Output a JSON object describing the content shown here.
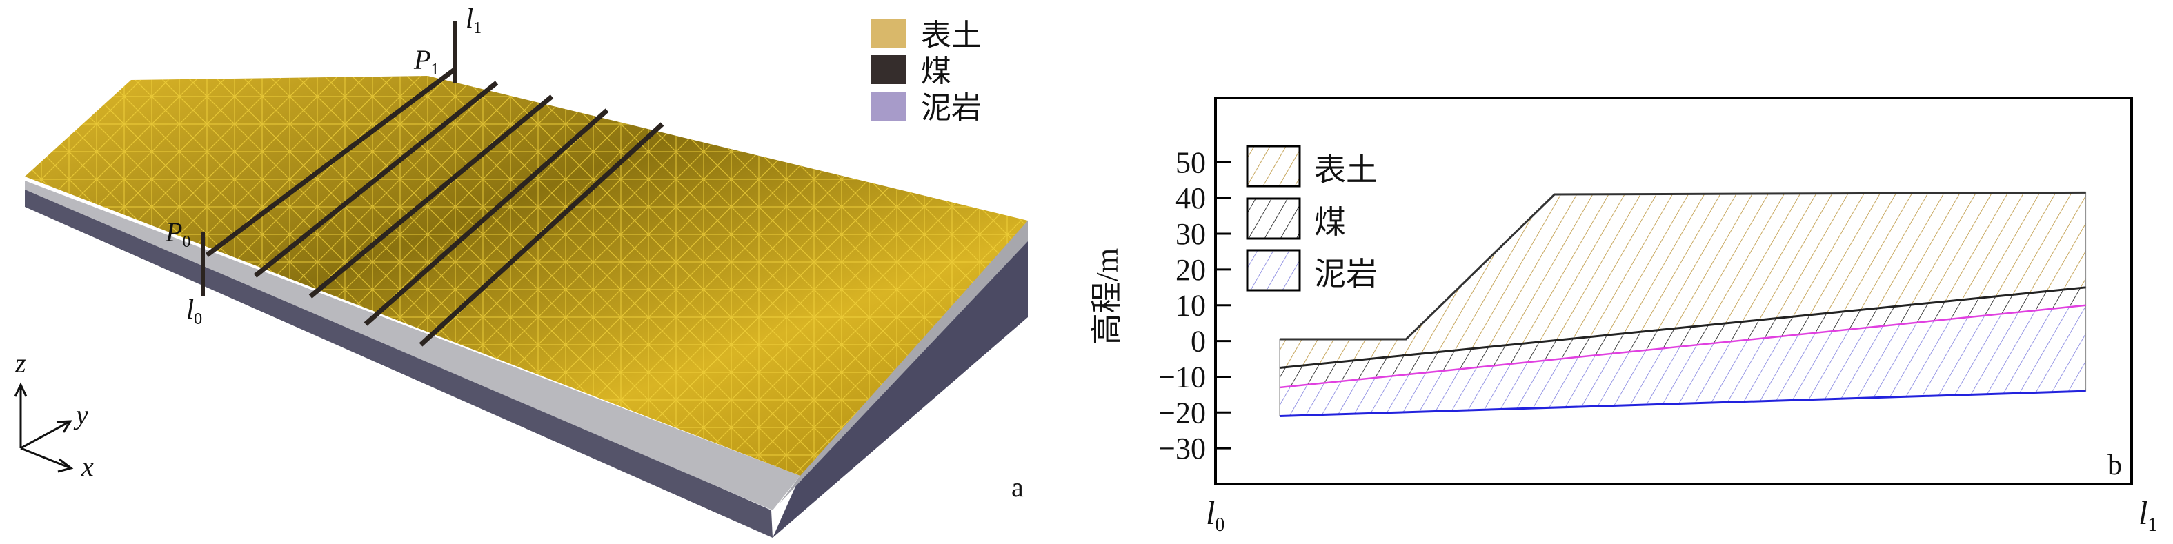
{
  "panel_a": {
    "label": "a",
    "line_labels": {
      "l1": "l",
      "l1_sub": "1",
      "l0": "l",
      "l0_sub": "0",
      "p1": "P",
      "p1_sub": "1",
      "p0": "P",
      "p0_sub": "0"
    },
    "axes": {
      "z": "z",
      "y": "y",
      "x": "x"
    },
    "legend": [
      {
        "label": "表土",
        "color": "#d9b86a"
      },
      {
        "label": "煤",
        "color": "#352d2c"
      },
      {
        "label": "泥岩",
        "color": "#a79bc9"
      }
    ],
    "surface_color": "#c9a21a",
    "mesh_color": "#f3d23a"
  },
  "chart_data": {
    "type": "area",
    "panel_label": "b",
    "ylabel": "高程/m",
    "xlabel_left": "l",
    "xlabel_left_sub": "0",
    "xlabel_right": "l",
    "xlabel_right_sub": "1",
    "ylim": [
      -40,
      68
    ],
    "xlim": [
      0,
      100
    ],
    "yticks": [
      50,
      40,
      30,
      20,
      10,
      0,
      -10,
      -20,
      -30
    ],
    "ytick_labels": [
      "50",
      "40",
      "30",
      "20",
      "10",
      "0",
      "−10",
      "−20",
      "−30"
    ],
    "legend": [
      {
        "label": "表土",
        "color": "#c8a860"
      },
      {
        "label": "煤",
        "color": "#111111"
      },
      {
        "label": "泥岩",
        "color": "#3333cc"
      }
    ],
    "layers": [
      {
        "name": "表土",
        "top": [
          [
            7,
            0.5
          ],
          [
            20.8,
            0.5
          ],
          [
            37,
            41
          ],
          [
            95,
            41.5
          ]
        ],
        "bottom": [
          [
            7,
            -7.5
          ],
          [
            95,
            15
          ]
        ],
        "color": "#c8a860"
      },
      {
        "name": "煤",
        "top": [
          [
            7,
            -7.5
          ],
          [
            95,
            15
          ]
        ],
        "bottom": [
          [
            7,
            -13
          ],
          [
            95,
            10
          ]
        ],
        "color": "#111111"
      },
      {
        "name": "泥岩",
        "top": [
          [
            7,
            -13
          ],
          [
            95,
            10
          ]
        ],
        "bottom": [
          [
            7,
            -21
          ],
          [
            95,
            -14
          ]
        ],
        "color": "#3333cc"
      }
    ],
    "boundary_colors": {
      "surface": "#333333",
      "coal_top": "#222222",
      "coal_bottom": "#e040e0",
      "base": "#2222dd"
    }
  }
}
